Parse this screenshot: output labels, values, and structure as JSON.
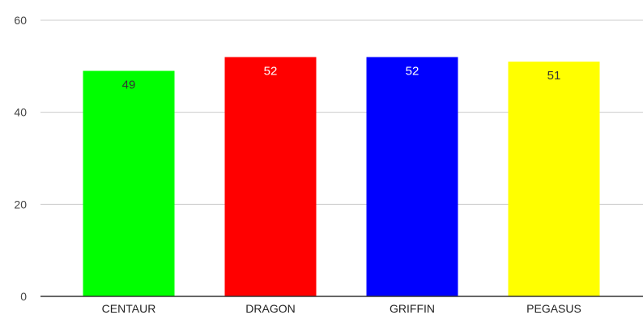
{
  "chart_data": {
    "type": "bar",
    "title": "",
    "xlabel": "",
    "ylabel": "",
    "categories": [
      "CENTAUR",
      "DRAGON",
      "GRIFFIN",
      "PEGASUS"
    ],
    "values": [
      49,
      52,
      52,
      51
    ],
    "data_labels": [
      "49",
      "52",
      "52",
      "51"
    ],
    "colors": [
      "#00ff00",
      "#ff0000",
      "#0000ff",
      "#ffff00"
    ],
    "label_colors": [
      "#333333",
      "#ffffff",
      "#ffffff",
      "#333333"
    ],
    "ylim": [
      0,
      60
    ],
    "yticks": [
      0,
      20,
      40,
      60
    ],
    "ytick_labels": [
      "0",
      "20",
      "40",
      "60"
    ],
    "grid": true,
    "legend": "none",
    "gridline_color": "#cccccc",
    "baseline_color": "#333333",
    "tick_text_color": "#444444"
  }
}
